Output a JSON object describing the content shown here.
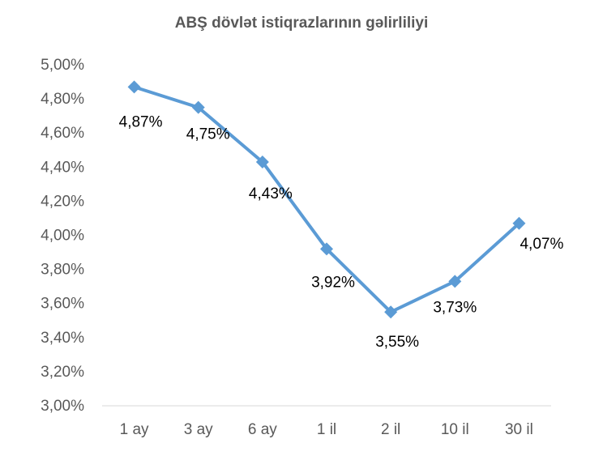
{
  "chart_data": {
    "type": "line",
    "title": "ABŞ dövlət istiqrazlarının gəlirliliyi",
    "xlabel": "",
    "ylabel": "",
    "categories": [
      "1 ay",
      "3 ay",
      "6 ay",
      "1 il",
      "2 il",
      "10 il",
      "30 il"
    ],
    "series": [
      {
        "values": [
          4.87,
          4.75,
          4.43,
          3.92,
          3.55,
          3.73,
          4.07
        ],
        "data_labels": [
          "4,87%",
          "4,75%",
          "4,43%",
          "3,92%",
          "3,55%",
          "3,73%",
          "4,07%"
        ],
        "color": "#5B9BD5",
        "marker": "diamond"
      }
    ],
    "ylim": [
      3.0,
      5.0
    ],
    "yticks": [
      5.0,
      4.8,
      4.6,
      4.4,
      4.2,
      4.0,
      3.8,
      3.6,
      3.4,
      3.2,
      3.0
    ],
    "ytick_labels": [
      "5,00%",
      "4,80%",
      "4,60%",
      "4,40%",
      "4,20%",
      "4,00%",
      "3,80%",
      "3,60%",
      "3,40%",
      "3,20%",
      "3,00%"
    ],
    "grid": false,
    "legend": "none"
  }
}
